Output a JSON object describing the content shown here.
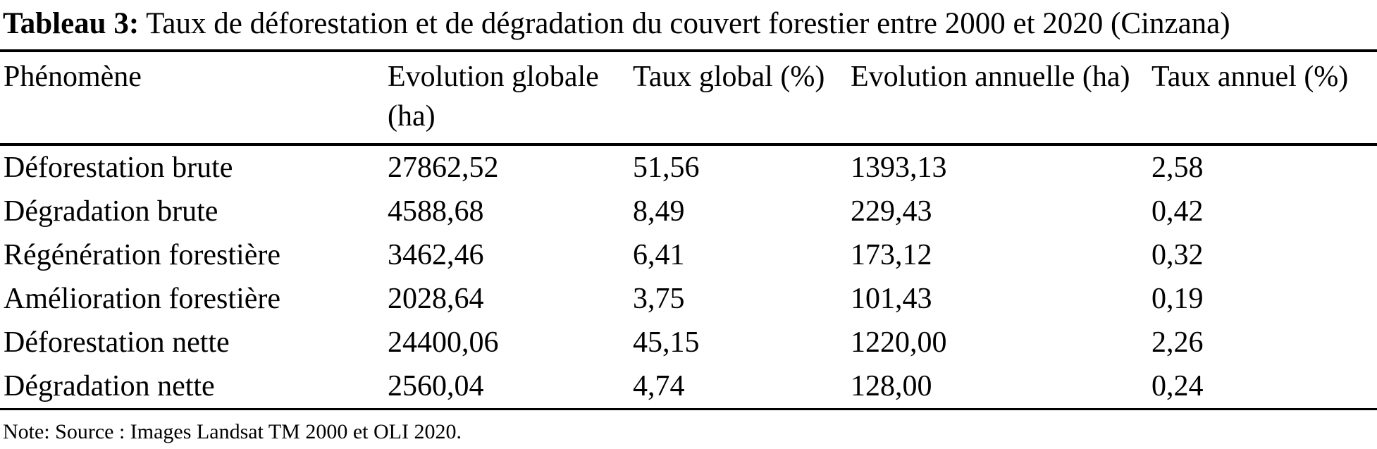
{
  "caption": {
    "label": "Tableau 3:",
    "text": " Taux de déforestation et de dégradation du couvert forestier entre 2000 et 2020 (Cinzana)"
  },
  "table": {
    "columns": [
      "Phénomène",
      "Evolution globale (ha)",
      "Taux global (%)",
      "Evolution annuelle (ha)",
      "Taux annuel (%)"
    ],
    "rows": [
      [
        "Déforestation brute",
        "27862,52",
        "51,56",
        "1393,13",
        "2,58"
      ],
      [
        "Dégradation brute",
        "4588,68",
        "8,49",
        "229,43",
        "0,42"
      ],
      [
        "Régénération forestière",
        "3462,46",
        "6,41",
        "173,12",
        "0,32"
      ],
      [
        "Amélioration forestière",
        "2028,64",
        "3,75",
        "101,43",
        "0,19"
      ],
      [
        "Déforestation nette",
        "24400,06",
        "45,15",
        "1220,00",
        "2,26"
      ],
      [
        "Dégradation nette",
        "2560,04",
        "4,74",
        "128,00",
        "0,24"
      ]
    ]
  },
  "note": "Note: Source : Images Landsat TM 2000 et OLI 2020."
}
